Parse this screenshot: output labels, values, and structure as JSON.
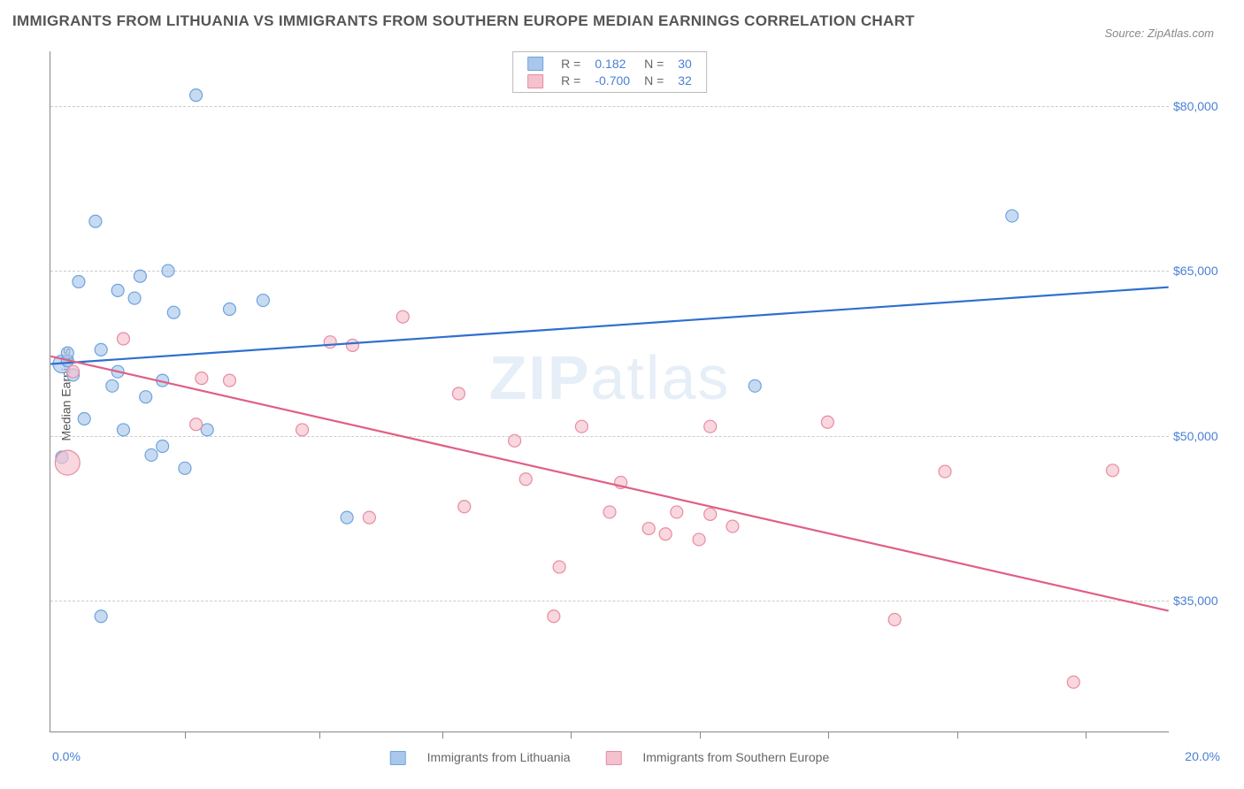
{
  "title": "IMMIGRANTS FROM LITHUANIA VS IMMIGRANTS FROM SOUTHERN EUROPE MEDIAN EARNINGS CORRELATION CHART",
  "source": "Source: ZipAtlas.com",
  "ylabel": "Median Earnings",
  "watermark_bold": "ZIP",
  "watermark_thin": "atlas",
  "chart": {
    "type": "scatter",
    "xlim": [
      0,
      20
    ],
    "ylim": [
      23000,
      85000
    ],
    "x_min_label": "0.0%",
    "x_max_label": "20.0%",
    "xtick_positions": [
      2.4,
      4.8,
      7.0,
      9.3,
      11.6,
      13.9,
      16.2,
      18.5
    ],
    "ygrid": [
      {
        "value": 35000,
        "label": "$35,000"
      },
      {
        "value": 50000,
        "label": "$50,000"
      },
      {
        "value": 65000,
        "label": "$65,000"
      },
      {
        "value": 80000,
        "label": "$80,000"
      }
    ],
    "background_color": "#ffffff",
    "grid_color": "#cccccc",
    "axis_color": "#888888",
    "series": [
      {
        "name": "Immigrants from Lithuania",
        "color_fill": "#a8c7eb",
        "color_stroke": "#6fa3dd",
        "line_color": "#2f6fd0",
        "marker_radius": 7,
        "R": "0.182",
        "N": "30",
        "regression": {
          "x1": 0,
          "y1": 56500,
          "x2": 20,
          "y2": 63500
        },
        "points": [
          {
            "x": 0.2,
            "y": 56500,
            "r": 10
          },
          {
            "x": 0.3,
            "y": 56800
          },
          {
            "x": 0.3,
            "y": 57500
          },
          {
            "x": 0.4,
            "y": 55500
          },
          {
            "x": 0.5,
            "y": 64000
          },
          {
            "x": 0.6,
            "y": 51500
          },
          {
            "x": 0.8,
            "y": 69500
          },
          {
            "x": 0.9,
            "y": 57800
          },
          {
            "x": 0.9,
            "y": 33500
          },
          {
            "x": 1.1,
            "y": 54500
          },
          {
            "x": 1.2,
            "y": 63200
          },
          {
            "x": 1.2,
            "y": 55800
          },
          {
            "x": 1.3,
            "y": 50500
          },
          {
            "x": 1.5,
            "y": 62500
          },
          {
            "x": 1.6,
            "y": 64500
          },
          {
            "x": 1.7,
            "y": 53500
          },
          {
            "x": 1.8,
            "y": 48200
          },
          {
            "x": 2.0,
            "y": 55000
          },
          {
            "x": 2.0,
            "y": 49000
          },
          {
            "x": 2.1,
            "y": 65000
          },
          {
            "x": 2.2,
            "y": 61200
          },
          {
            "x": 2.4,
            "y": 47000
          },
          {
            "x": 2.6,
            "y": 81000
          },
          {
            "x": 2.8,
            "y": 50500
          },
          {
            "x": 3.2,
            "y": 61500
          },
          {
            "x": 3.8,
            "y": 62300
          },
          {
            "x": 5.3,
            "y": 42500
          },
          {
            "x": 12.6,
            "y": 54500
          },
          {
            "x": 17.2,
            "y": 70000
          },
          {
            "x": 0.2,
            "y": 48000
          }
        ]
      },
      {
        "name": "Immigrants from Southern Europe",
        "color_fill": "#f4c1cd",
        "color_stroke": "#e88ba3",
        "line_color": "#e15f84",
        "marker_radius": 7,
        "R": "-0.700",
        "N": "32",
        "regression": {
          "x1": 0,
          "y1": 57200,
          "x2": 20,
          "y2": 34000
        },
        "points": [
          {
            "x": 0.3,
            "y": 47500,
            "r": 14
          },
          {
            "x": 0.4,
            "y": 55800
          },
          {
            "x": 1.3,
            "y": 58800
          },
          {
            "x": 2.6,
            "y": 51000
          },
          {
            "x": 2.7,
            "y": 55200
          },
          {
            "x": 3.2,
            "y": 55000
          },
          {
            "x": 4.5,
            "y": 50500
          },
          {
            "x": 5.0,
            "y": 58500
          },
          {
            "x": 5.4,
            "y": 58200
          },
          {
            "x": 5.7,
            "y": 42500
          },
          {
            "x": 6.3,
            "y": 60800
          },
          {
            "x": 7.3,
            "y": 53800
          },
          {
            "x": 7.4,
            "y": 43500
          },
          {
            "x": 8.3,
            "y": 49500
          },
          {
            "x": 8.5,
            "y": 46000
          },
          {
            "x": 9.0,
            "y": 33500
          },
          {
            "x": 9.1,
            "y": 38000
          },
          {
            "x": 10.0,
            "y": 43000
          },
          {
            "x": 10.2,
            "y": 45700
          },
          {
            "x": 10.7,
            "y": 41500
          },
          {
            "x": 11.0,
            "y": 41000
          },
          {
            "x": 11.2,
            "y": 43000
          },
          {
            "x": 11.6,
            "y": 40500
          },
          {
            "x": 11.8,
            "y": 42800
          },
          {
            "x": 11.8,
            "y": 50800
          },
          {
            "x": 12.2,
            "y": 41700
          },
          {
            "x": 13.9,
            "y": 51200
          },
          {
            "x": 15.1,
            "y": 33200
          },
          {
            "x": 16.0,
            "y": 46700
          },
          {
            "x": 18.3,
            "y": 27500
          },
          {
            "x": 19.0,
            "y": 46800
          },
          {
            "x": 9.5,
            "y": 50800
          }
        ]
      }
    ]
  },
  "legend_bottom": [
    {
      "label": "Immigrants from Lithuania",
      "fill": "#a8c7eb",
      "stroke": "#6fa3dd"
    },
    {
      "label": "Immigrants from Southern Europe",
      "fill": "#f4c1cd",
      "stroke": "#e88ba3"
    }
  ]
}
